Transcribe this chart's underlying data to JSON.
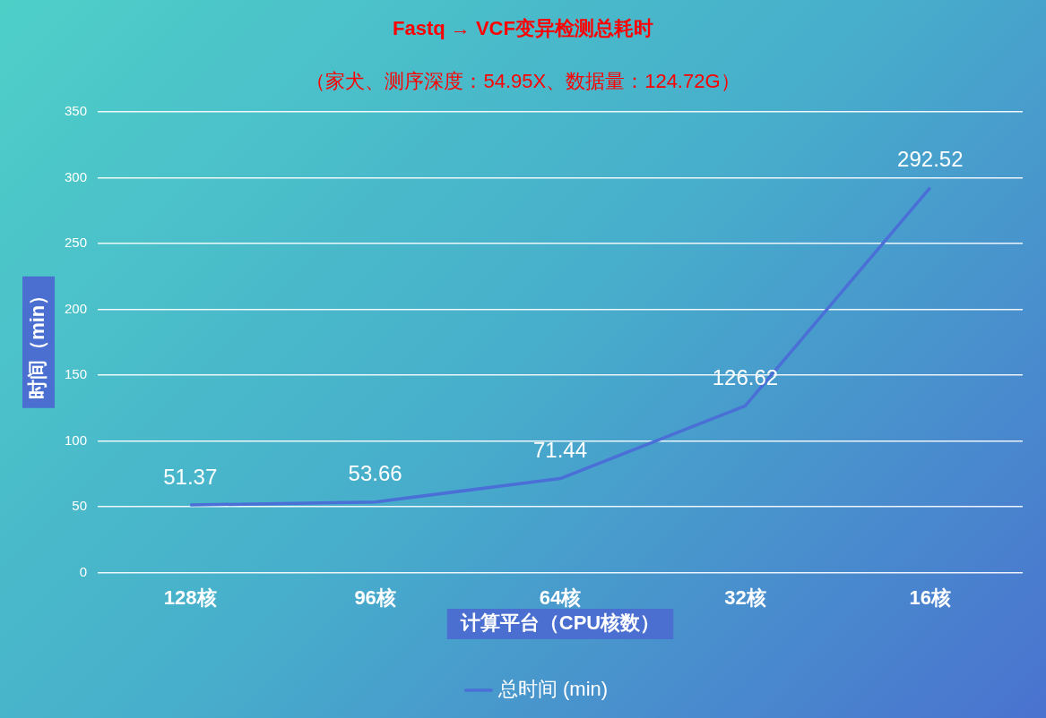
{
  "chart_data": {
    "type": "line",
    "title": "Fastq → VCF变异检测总耗时",
    "subtitle": "（家犬、测序深度：54.95X、数据量：124.72G）",
    "xlabel": "计算平台（CPU核数）",
    "ylabel": "时间（min）",
    "categories": [
      "128核",
      "96核",
      "64核",
      "32核",
      "16核"
    ],
    "series": [
      {
        "name": "总时间 (min)",
        "color": "#4a6fd6",
        "values": [
          51.37,
          53.66,
          71.44,
          126.62,
          292.52
        ]
      }
    ],
    "ylim": [
      0,
      350
    ],
    "yticks": [
      0,
      50,
      100,
      150,
      200,
      250,
      300,
      350
    ],
    "grid": "y",
    "legend": "bottom",
    "marker": "none",
    "line_style": "solid",
    "data_labels": true
  }
}
